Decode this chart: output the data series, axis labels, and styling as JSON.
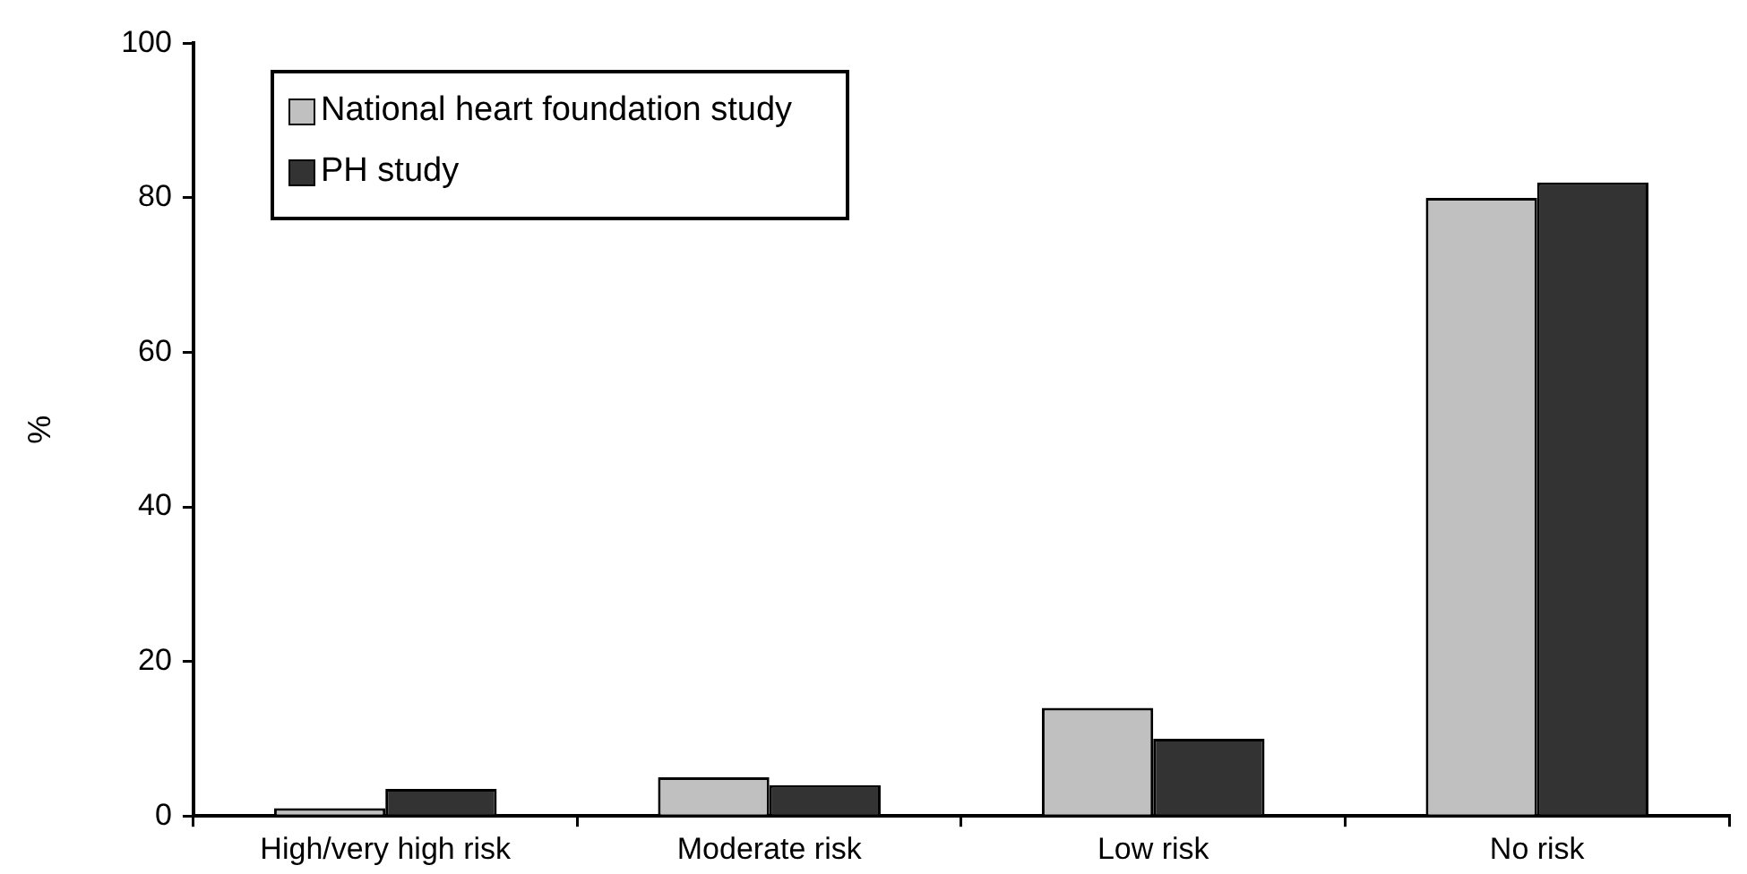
{
  "chart_data": {
    "type": "bar",
    "ylabel": "%",
    "categories": [
      "High/very high risk",
      "Moderate risk",
      "Low risk",
      "No risk"
    ],
    "series": [
      {
        "name": "National heart foundation study",
        "color": "#c0c0c0",
        "values": [
          1,
          5,
          14,
          80
        ]
      },
      {
        "name": "PH study",
        "color": "#333333",
        "values": [
          3.5,
          4,
          10,
          82
        ]
      }
    ],
    "ylim": [
      0,
      100
    ],
    "yticks": [
      0,
      20,
      40,
      60,
      80,
      100
    ],
    "grid": false,
    "legend": "top left"
  }
}
